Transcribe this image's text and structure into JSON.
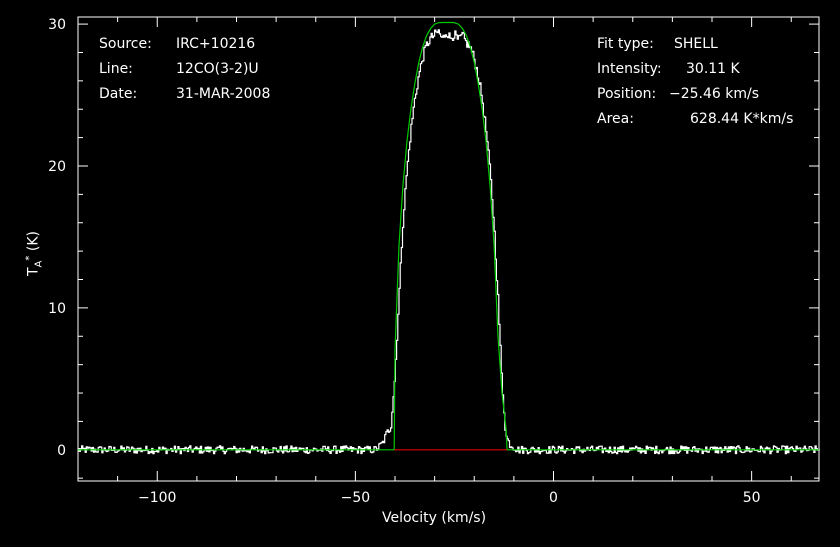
{
  "info_left": {
    "source_label": "Source:",
    "source_value": "IRC+10216",
    "line_label": "Line:",
    "line_value": "12CO(3-2)U",
    "date_label": "Date:",
    "date_value": "31-MAR-2008"
  },
  "info_right": {
    "fit_label": "Fit type:",
    "fit_value": "SHELL",
    "intensity_label": "Intensity:",
    "intensity_value": "30.11 K",
    "position_label": "Position:",
    "position_value": "−25.46 km/s",
    "area_label": "Area:",
    "area_value": "628.44 K*km/s"
  },
  "chart_data": {
    "type": "line",
    "title": "",
    "xlabel": "Velocity (km/s)",
    "ylabel": "T*A (K)",
    "xlim": [
      -120,
      67
    ],
    "ylim": [
      -2.2,
      30.5
    ],
    "x_ticks": [
      -100,
      -50,
      0,
      50
    ],
    "x_tick_labels": [
      "−100",
      "−50",
      "0",
      "50"
    ],
    "y_ticks": [
      0,
      10,
      20,
      30
    ],
    "y_tick_labels": [
      "0",
      "10",
      "20",
      "30"
    ],
    "grid": false,
    "series": [
      {
        "name": "",
        "color": "#ffffff",
        "style": "histogram",
        "x": [
          -120,
          -60,
          -45,
          -44,
          -43,
          -42,
          -41,
          -40,
          -39,
          -38,
          -37,
          -36,
          -35,
          -34,
          -33,
          -32,
          -31,
          -30,
          -29,
          -28,
          -27,
          -26,
          -25,
          -24,
          -23,
          -22,
          -21,
          -20,
          -19,
          -18,
          -17,
          -16,
          -15,
          -14,
          -13,
          -12,
          -11,
          -10,
          -9,
          0,
          30,
          67
        ],
        "y": [
          0,
          0,
          0,
          0.2,
          0.5,
          1.2,
          1.6,
          5.0,
          10.5,
          15.8,
          19.5,
          22.4,
          24.6,
          26.3,
          27.6,
          28.5,
          29.0,
          29.2,
          29.5,
          28.9,
          29.5,
          29.0,
          29.3,
          28.8,
          29.2,
          28.7,
          28.4,
          27.6,
          26.4,
          24.8,
          22.6,
          19.8,
          16.0,
          11.0,
          5.0,
          1.0,
          0.4,
          0.2,
          0,
          0,
          0,
          0
        ]
      },
      {
        "name": "",
        "color": "#00cc00",
        "style": "line",
        "x": [
          -120,
          -40.2,
          -40,
          -39,
          -38,
          -37,
          -36,
          -35,
          -34,
          -33,
          -32,
          -31,
          -30,
          -29,
          -28,
          -27,
          -26,
          -25.46,
          -25,
          -24,
          -23,
          -22,
          -21,
          -20,
          -19,
          -18,
          -17,
          -16,
          -15,
          -14,
          -13,
          -12,
          -11.7,
          67
        ],
        "y": [
          0,
          0,
          7.0,
          14.4,
          18.6,
          21.7,
          24.0,
          25.8,
          27.3,
          28.4,
          29.2,
          29.7,
          30.0,
          30.1,
          30.11,
          30.11,
          30.11,
          30.11,
          30.1,
          30.0,
          29.7,
          29.2,
          28.4,
          27.3,
          25.8,
          24.0,
          21.7,
          18.6,
          14.4,
          8.0,
          4.0,
          1.5,
          0,
          0
        ]
      },
      {
        "name": "",
        "color": "#dd0000",
        "style": "line",
        "x": [
          -40.2,
          -11.7
        ],
        "y": [
          0,
          0
        ]
      }
    ]
  }
}
